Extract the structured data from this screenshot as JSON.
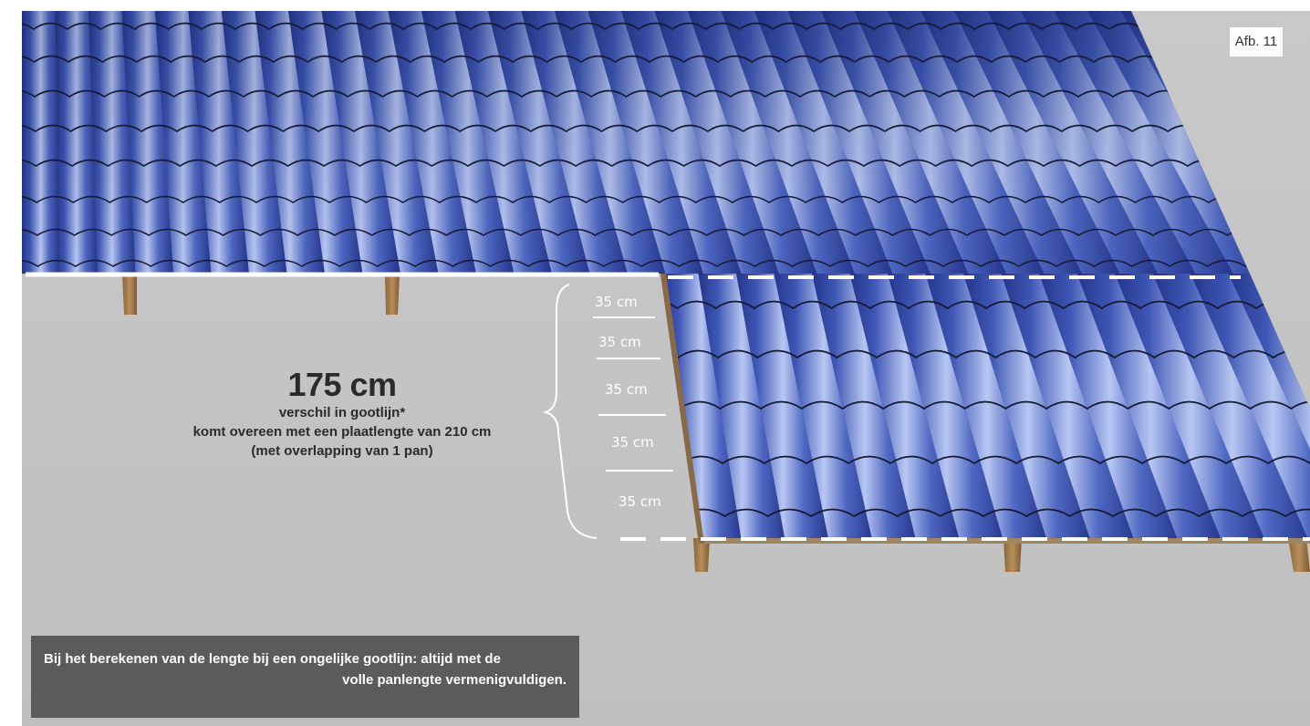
{
  "figure_label": "Afb. 11",
  "callout": {
    "value": "175 cm",
    "line1": "verschil in gootlijn*",
    "line2": "komt overeen met een plaatlengte van 210 cm",
    "line3": "(met overlapping van 1 pan)"
  },
  "segments": [
    {
      "label": "35 cm"
    },
    {
      "label": "35 cm"
    },
    {
      "label": "35 cm"
    },
    {
      "label": "35 cm"
    },
    {
      "label": "35 cm"
    }
  ],
  "note": {
    "line1": "Bij het berekenen van de lengte bij een ongelijke gootlijn: altijd met de",
    "line2": "volle panlengte vermenigvuldigen."
  },
  "colors": {
    "background": "#c4c4c4",
    "tile_blue": "#3e57b4",
    "tile_highlight": "#b4c4f0",
    "batten_wood": "#a37d4e",
    "note_box": "#5b5b5b"
  }
}
